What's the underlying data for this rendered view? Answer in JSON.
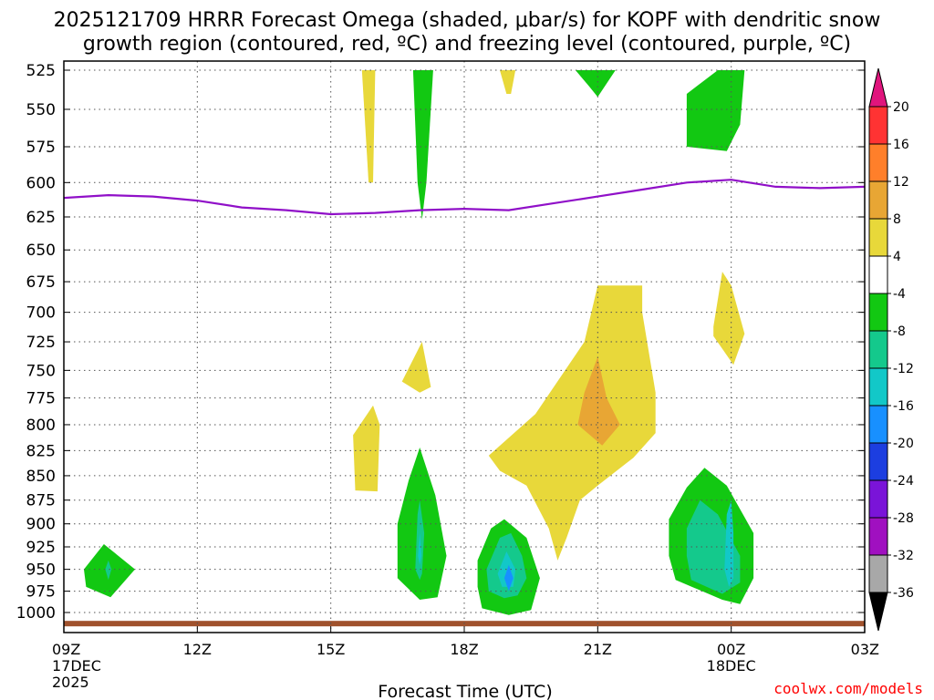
{
  "chart_data": {
    "type": "heatmap",
    "title_line1": "2025121709 HRRR Forecast Omega (shaded, μbar/s) for KOPF with dendritic snow",
    "title_line2": "growth region (contoured, red, ºC) and freezing level (contoured, purple, ºC)",
    "xlabel": "Forecast Time (UTC)",
    "credit": "coolwx.com/models",
    "x_range_hours": [
      0,
      18
    ],
    "y_range_mb": [
      525,
      1010
    ],
    "y_ticks": [
      525,
      550,
      575,
      600,
      625,
      650,
      675,
      700,
      725,
      750,
      775,
      800,
      825,
      850,
      875,
      900,
      925,
      950,
      975,
      1000
    ],
    "x_ticks": [
      {
        "hour": 0,
        "label": "09Z",
        "sub1": "17DEC",
        "sub2": "2025"
      },
      {
        "hour": 3,
        "label": "12Z",
        "sub1": "",
        "sub2": ""
      },
      {
        "hour": 6,
        "label": "15Z",
        "sub1": "",
        "sub2": ""
      },
      {
        "hour": 9,
        "label": "18Z",
        "sub1": "",
        "sub2": ""
      },
      {
        "hour": 12,
        "label": "21Z",
        "sub1": "",
        "sub2": ""
      },
      {
        "hour": 15,
        "label": "00Z",
        "sub1": "18DEC",
        "sub2": ""
      },
      {
        "hour": 18,
        "label": "03Z",
        "sub1": "",
        "sub2": ""
      }
    ],
    "colorbar": {
      "labels": [
        "20",
        "16",
        "12",
        "8",
        "4",
        "-4",
        "-8",
        "-12",
        "-16",
        "-20",
        "-24",
        "-28",
        "-32",
        "-36"
      ],
      "colors": [
        "#e0157d",
        "#ff3333",
        "#ff7f2a",
        "#e8a634",
        "#e8d83a",
        "#ffffff",
        "#12c812",
        "#14c98c",
        "#12c8c8",
        "#1890ff",
        "#1c3ee0",
        "#7a14d8",
        "#a010c0",
        "#a8a8a8",
        "#000000"
      ]
    },
    "freezing_level_mb": {
      "hours": [
        0,
        1,
        2,
        3,
        4,
        5,
        6,
        7,
        8,
        9,
        10,
        11,
        12,
        13,
        14,
        15,
        16,
        17,
        18
      ],
      "values": [
        611,
        609,
        610,
        613,
        618,
        620,
        623,
        622,
        620,
        619,
        620,
        615,
        610,
        605,
        600,
        598,
        603,
        604,
        603
      ]
    },
    "omega_regions": [
      {
        "category": "4 to 8",
        "color": "#e8d83a",
        "points": [
          [
            6.7,
            525
          ],
          [
            7.0,
            525
          ],
          [
            6.95,
            600
          ],
          [
            6.85,
            600
          ]
        ]
      },
      {
        "category": "-4 to -8",
        "color": "#12c812",
        "points": [
          [
            7.85,
            525
          ],
          [
            8.3,
            525
          ],
          [
            8.15,
            600
          ],
          [
            8.05,
            627
          ],
          [
            7.95,
            600
          ]
        ]
      },
      {
        "category": "4 to 8",
        "color": "#e8d83a",
        "points": [
          [
            9.8,
            525
          ],
          [
            10.15,
            525
          ],
          [
            10.05,
            540
          ],
          [
            9.95,
            540
          ]
        ]
      },
      {
        "category": "-4 to -8",
        "color": "#12c812",
        "points": [
          [
            11.5,
            525
          ],
          [
            12.4,
            525
          ],
          [
            12.0,
            542
          ],
          [
            11.8,
            535
          ]
        ]
      },
      {
        "category": "-4 to -8",
        "color": "#12c812",
        "points": [
          [
            14.0,
            540
          ],
          [
            14.7,
            525
          ],
          [
            15.3,
            525
          ],
          [
            15.2,
            560
          ],
          [
            14.9,
            578
          ],
          [
            14.0,
            575
          ]
        ]
      },
      {
        "category": "4 to 8",
        "color": "#e8d83a",
        "points": [
          [
            6.5,
            810
          ],
          [
            6.95,
            782
          ],
          [
            7.1,
            800
          ],
          [
            7.05,
            866
          ],
          [
            6.55,
            865
          ]
        ]
      },
      {
        "category": "4 to 8",
        "color": "#e8d83a",
        "points": [
          [
            7.6,
            760
          ],
          [
            8.05,
            725
          ],
          [
            8.25,
            765
          ],
          [
            8.0,
            770
          ]
        ]
      },
      {
        "category": "4 to 8",
        "color": "#e8d83a",
        "points": [
          [
            9.55,
            830
          ],
          [
            10.6,
            790
          ],
          [
            11.7,
            725
          ],
          [
            12.0,
            678
          ],
          [
            13.0,
            678
          ],
          [
            13.0,
            700
          ],
          [
            13.3,
            770
          ],
          [
            13.3,
            808
          ],
          [
            12.8,
            832
          ],
          [
            12.0,
            860
          ],
          [
            11.6,
            875
          ],
          [
            11.3,
            915
          ],
          [
            11.1,
            940
          ],
          [
            10.9,
            905
          ],
          [
            10.4,
            860
          ],
          [
            9.8,
            845
          ]
        ]
      },
      {
        "category": "8 to 12",
        "color": "#e8a634",
        "points": [
          [
            11.55,
            800
          ],
          [
            11.7,
            770
          ],
          [
            12.0,
            738
          ],
          [
            12.2,
            775
          ],
          [
            12.5,
            800
          ],
          [
            12.1,
            820
          ]
        ]
      },
      {
        "category": "4 to 8",
        "color": "#e8d83a",
        "points": [
          [
            14.6,
            712
          ],
          [
            14.8,
            667
          ],
          [
            15.0,
            678
          ],
          [
            15.3,
            718
          ],
          [
            15.05,
            745
          ],
          [
            14.6,
            720
          ]
        ]
      },
      {
        "category": "-4 to -8",
        "color": "#12c812",
        "points": [
          [
            0.45,
            950
          ],
          [
            0.9,
            922
          ],
          [
            1.6,
            950
          ],
          [
            1.05,
            982
          ],
          [
            0.5,
            970
          ]
        ]
      },
      {
        "category": "-8 to -12",
        "color": "#14c98c",
        "points": [
          [
            0.93,
            950
          ],
          [
            1.0,
            940
          ],
          [
            1.07,
            950
          ],
          [
            1.0,
            962
          ]
        ]
      },
      {
        "category": "-4 to -8",
        "color": "#12c812",
        "points": [
          [
            7.5,
            900
          ],
          [
            7.75,
            855
          ],
          [
            8.0,
            822
          ],
          [
            8.35,
            870
          ],
          [
            8.6,
            935
          ],
          [
            8.4,
            982
          ],
          [
            8.0,
            985
          ],
          [
            7.5,
            960
          ]
        ]
      },
      {
        "category": "-8 to -12",
        "color": "#14c98c",
        "points": [
          [
            7.9,
            950
          ],
          [
            7.95,
            890
          ],
          [
            8.0,
            875
          ],
          [
            8.1,
            910
          ],
          [
            8.05,
            955
          ],
          [
            8.0,
            962
          ]
        ]
      },
      {
        "category": "-12 to -16",
        "color": "#12c8c8",
        "points": [
          [
            7.96,
            935
          ],
          [
            8.0,
            910
          ],
          [
            8.04,
            935
          ],
          [
            8.0,
            945
          ]
        ]
      },
      {
        "category": "-4 to -8",
        "color": "#12c812",
        "points": [
          [
            9.3,
            940
          ],
          [
            9.6,
            905
          ],
          [
            9.9,
            895
          ],
          [
            10.4,
            915
          ],
          [
            10.7,
            960
          ],
          [
            10.5,
            997
          ],
          [
            10.0,
            1003
          ],
          [
            9.4,
            995
          ],
          [
            9.3,
            970
          ]
        ]
      },
      {
        "category": "-8 to -12",
        "color": "#14c98c",
        "points": [
          [
            9.5,
            950
          ],
          [
            9.8,
            915
          ],
          [
            10.05,
            910
          ],
          [
            10.3,
            935
          ],
          [
            10.4,
            960
          ],
          [
            10.2,
            980
          ],
          [
            9.9,
            983
          ],
          [
            9.55,
            975
          ]
        ]
      },
      {
        "category": "-12 to -16",
        "color": "#12c8c8",
        "points": [
          [
            9.75,
            955
          ],
          [
            9.95,
            930
          ],
          [
            10.15,
            950
          ],
          [
            10.1,
            970
          ],
          [
            9.85,
            970
          ]
        ]
      },
      {
        "category": "-16 to -20",
        "color": "#1890ff",
        "points": [
          [
            9.9,
            960
          ],
          [
            10.0,
            945
          ],
          [
            10.1,
            960
          ],
          [
            10.0,
            975
          ]
        ]
      },
      {
        "category": "-4 to -8",
        "color": "#12c812",
        "points": [
          [
            13.6,
            895
          ],
          [
            14.0,
            862
          ],
          [
            14.4,
            842
          ],
          [
            14.9,
            860
          ],
          [
            15.5,
            910
          ],
          [
            15.5,
            960
          ],
          [
            15.2,
            990
          ],
          [
            14.8,
            985
          ],
          [
            13.75,
            962
          ],
          [
            13.6,
            935
          ]
        ]
      },
      {
        "category": "-8 to -12",
        "color": "#14c98c",
        "points": [
          [
            14.0,
            905
          ],
          [
            14.3,
            875
          ],
          [
            14.7,
            890
          ],
          [
            15.2,
            935
          ],
          [
            15.2,
            965
          ],
          [
            14.8,
            978
          ],
          [
            14.1,
            962
          ],
          [
            14.0,
            935
          ]
        ]
      },
      {
        "category": "-12 to -16",
        "color": "#12c8c8",
        "points": [
          [
            14.85,
            950
          ],
          [
            14.9,
            890
          ],
          [
            15.0,
            875
          ],
          [
            15.05,
            910
          ],
          [
            15.05,
            960
          ],
          [
            14.95,
            970
          ]
        ]
      }
    ],
    "ground_band_mb": [
      1010,
      1016
    ],
    "ground_color": "#a0522d",
    "freezing_line_color": "#9010c8"
  }
}
